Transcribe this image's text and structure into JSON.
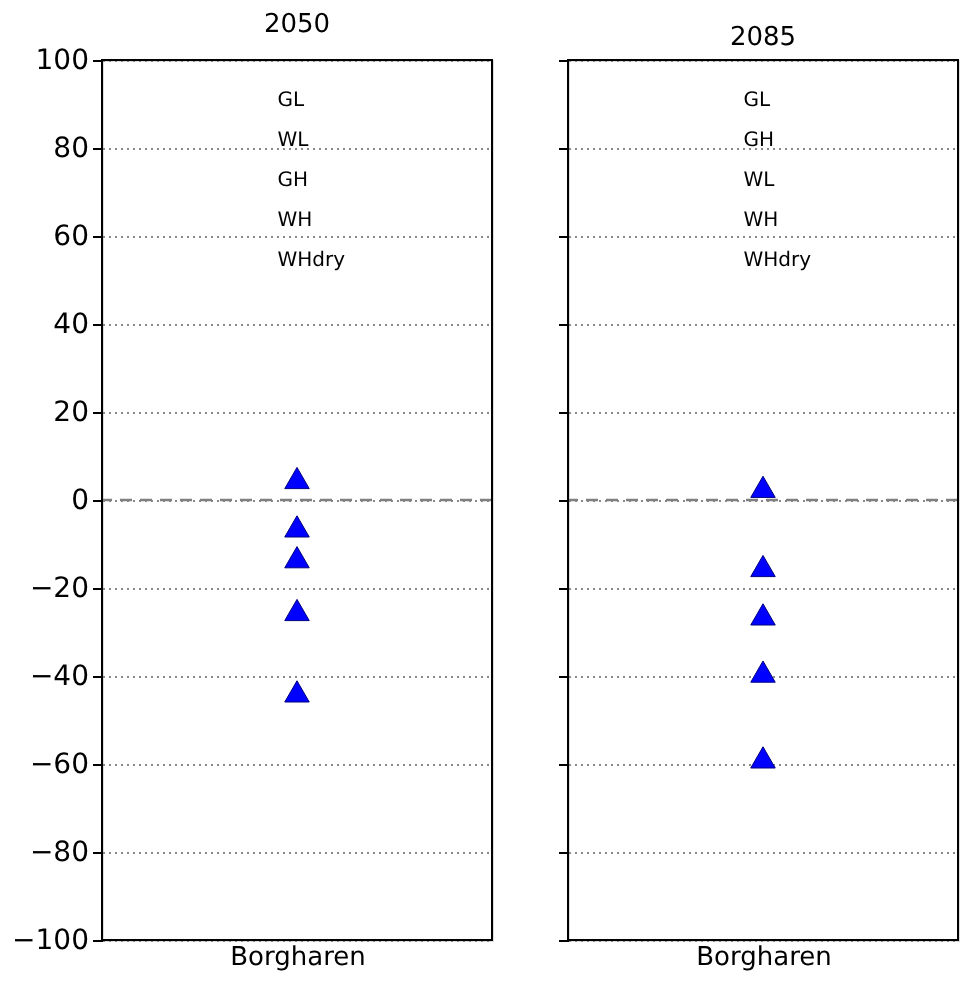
{
  "chart_data": [
    {
      "type": "scatter",
      "title": "2050",
      "categories": [
        "Borgharen"
      ],
      "series": [
        {
          "color": "#0000ff",
          "x": [
            "Borgharen",
            "Borgharen",
            "Borgharen",
            "Borgharen",
            "Borgharen"
          ],
          "values": [
            5,
            -6,
            -13,
            -25,
            -43.5
          ]
        }
      ],
      "ylim": [
        -100,
        100
      ],
      "yticks": [
        -100,
        -80,
        -60,
        -40,
        -20,
        0,
        20,
        40,
        60,
        80,
        100
      ],
      "grid": "y",
      "marker": "triangle",
      "ref_lines": [
        {
          "axis": "y",
          "value": 0,
          "color": "#808080",
          "line_style": "dashed"
        }
      ],
      "annotations": [
        "GL",
        "WL",
        "GH",
        "WH",
        "WHdry"
      ]
    },
    {
      "type": "scatter",
      "title": "2085",
      "categories": [
        "Borgharen"
      ],
      "series": [
        {
          "color": "#0000ff",
          "x": [
            "Borgharen",
            "Borgharen",
            "Borgharen",
            "Borgharen",
            "Borgharen"
          ],
          "values": [
            3,
            -15,
            -26,
            -39,
            -58.5
          ]
        }
      ],
      "ylim": [
        -100,
        100
      ],
      "yticks": [
        -100,
        -80,
        -60,
        -40,
        -20,
        0,
        20,
        40,
        60,
        80,
        100
      ],
      "grid": "y",
      "marker": "triangle",
      "tick_labels": "x",
      "ref_lines": [
        {
          "axis": "y",
          "value": 0,
          "color": "#808080",
          "line_style": "dashed"
        }
      ],
      "annotations": [
        "GL",
        "GH",
        "WL",
        "WH",
        "WHdry"
      ]
    }
  ]
}
